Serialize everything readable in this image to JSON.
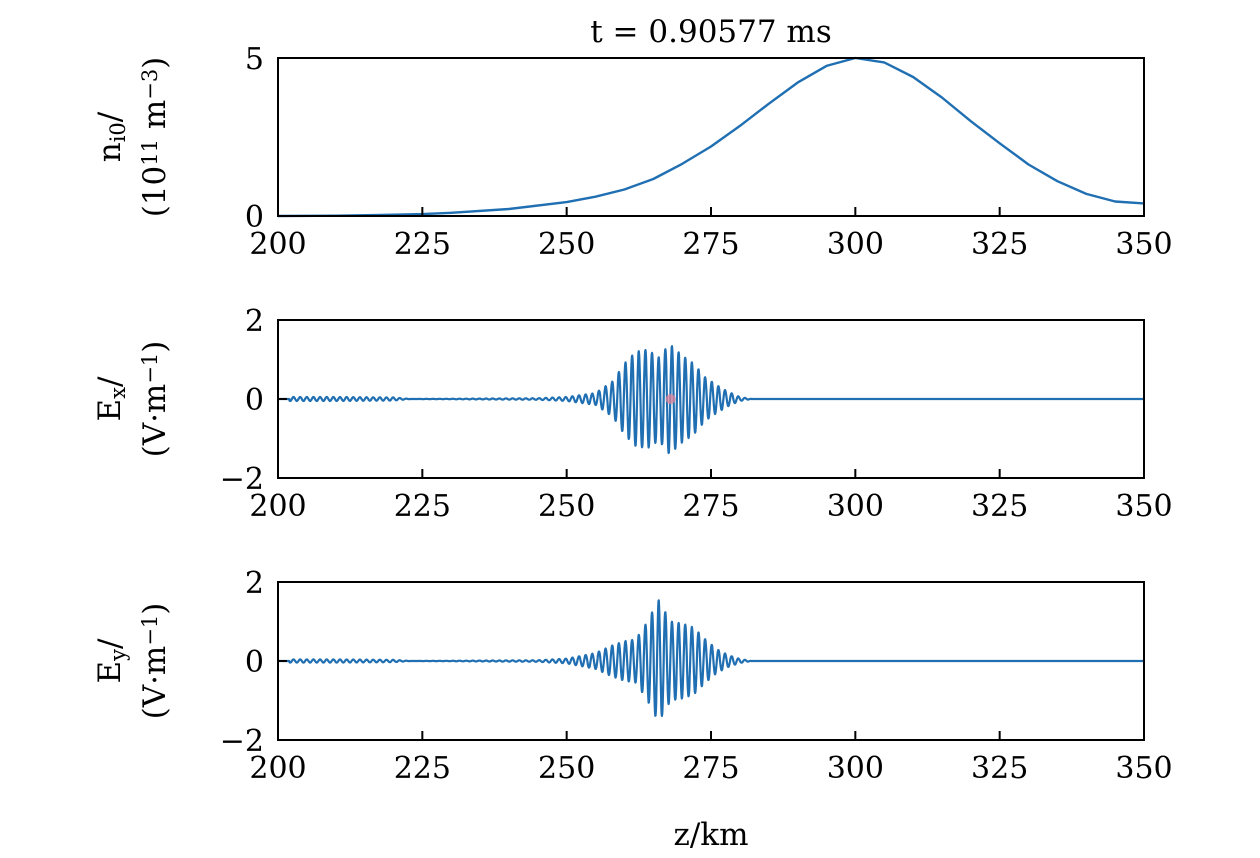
{
  "figure": {
    "title": "t = 0.90577 ms",
    "xlabel": "z/km",
    "line_color": "#1f6fb2",
    "marker_color": "#e0829a"
  },
  "chart_data": [
    {
      "type": "line",
      "id": "density",
      "ylabel_line1": "n_i0/",
      "ylabel_line2": "(10^11 m^−3)",
      "xlim": [
        200,
        350
      ],
      "ylim": [
        0,
        5
      ],
      "xticks": [
        200,
        225,
        250,
        275,
        300,
        325,
        350
      ],
      "yticks": [
        0,
        5
      ],
      "xtick_labels": [
        "200",
        "225",
        "250",
        "275",
        "300",
        "325",
        "350"
      ],
      "ytick_labels": [
        "0",
        "5"
      ],
      "series": [
        {
          "x": [
            200,
            210,
            220,
            225,
            230,
            240,
            250,
            255,
            260,
            265,
            270,
            275,
            280,
            285,
            290,
            295,
            300,
            305,
            310,
            315,
            320,
            325,
            330,
            335,
            340,
            345,
            350
          ],
          "y": [
            0.0,
            0.01,
            0.04,
            0.06,
            0.1,
            0.22,
            0.44,
            0.61,
            0.84,
            1.17,
            1.65,
            2.2,
            2.85,
            3.55,
            4.22,
            4.75,
            5.0,
            4.86,
            4.4,
            3.75,
            3.0,
            2.3,
            1.63,
            1.1,
            0.7,
            0.46,
            0.4
          ]
        }
      ]
    },
    {
      "type": "line",
      "id": "ex",
      "ylabel_line1": "E_x/",
      "ylabel_line2": "(V·m^−1)",
      "xlim": [
        200,
        350
      ],
      "ylim": [
        -2,
        2
      ],
      "xticks": [
        200,
        225,
        250,
        275,
        300,
        325,
        350
      ],
      "yticks": [
        -2,
        0,
        2
      ],
      "xtick_labels": [
        "200",
        "225",
        "250",
        "275",
        "300",
        "325",
        "350"
      ],
      "ytick_labels": [
        "−2",
        "0",
        "2"
      ],
      "marker": {
        "x": 268,
        "y": 0
      },
      "packet": {
        "x": [
          202,
          210,
          220,
          223,
          245,
          250,
          255,
          258,
          260,
          262,
          264,
          266,
          267.8,
          270,
          272,
          274,
          276,
          278,
          280,
          282
        ],
        "amplitude": [
          0.05,
          0.05,
          0.04,
          0.0,
          0.02,
          0.05,
          0.15,
          0.45,
          0.9,
          1.2,
          1.25,
          1.05,
          1.4,
          1.1,
          0.9,
          0.55,
          0.35,
          0.18,
          0.05,
          0.0
        ],
        "period_km": 1.15
      }
    },
    {
      "type": "line",
      "id": "ey",
      "ylabel_line1": "E_y/",
      "ylabel_line2": "(V·m^−1)",
      "xlim": [
        200,
        350
      ],
      "ylim": [
        -2,
        2
      ],
      "xticks": [
        200,
        225,
        250,
        275,
        300,
        325,
        350
      ],
      "yticks": [
        -2,
        0,
        2
      ],
      "xtick_labels": [
        "200",
        "225",
        "250",
        "275",
        "300",
        "325",
        "350"
      ],
      "ytick_labels": [
        "−2",
        "0",
        "2"
      ],
      "packet": {
        "x": [
          202,
          210,
          220,
          223,
          245,
          250,
          255,
          258,
          260,
          262,
          264,
          265.9,
          268,
          270,
          272,
          274,
          276,
          278,
          280,
          282
        ],
        "amplitude": [
          0.04,
          0.04,
          0.03,
          0.0,
          0.02,
          0.06,
          0.2,
          0.4,
          0.5,
          0.55,
          1.0,
          1.55,
          1.0,
          0.95,
          0.85,
          0.55,
          0.3,
          0.15,
          0.05,
          0.0
        ],
        "period_km": 1.15
      }
    }
  ]
}
